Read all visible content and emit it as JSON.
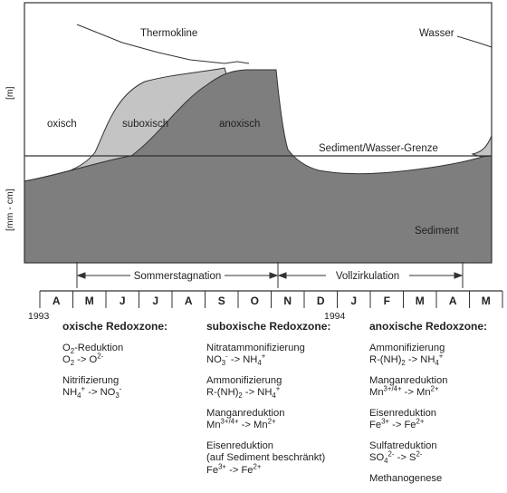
{
  "diagram": {
    "labels": {
      "thermokline": "Thermokline",
      "wasser": "Wasser",
      "oxisch": "oxisch",
      "suboxisch": "suboxisch",
      "anoxisch": "anoxisch",
      "grenze": "Sediment/Wasser-Grenze",
      "sediment": "Sediment",
      "y_upper": "[m]",
      "y_lower": "[mm - cm]"
    },
    "periods": {
      "sommer": "Sommerstagnation",
      "voll": "Vollzirkulation"
    },
    "months": [
      "A",
      "M",
      "J",
      "J",
      "A",
      "S",
      "O",
      "N",
      "D",
      "J",
      "F",
      "M",
      "A",
      "M"
    ],
    "years": {
      "y1": "1993",
      "y2": "1994"
    },
    "colors": {
      "sediment": "#8c8c8c",
      "suboxic": "#c4c4c4",
      "anoxic": "#7e7e7e",
      "line": "#333333"
    }
  },
  "zones": {
    "oxic": {
      "title": "oxische Redoxzone:",
      "items": [
        {
          "name": "O2-Reduktion",
          "formula": "O2 -> O2-"
        },
        {
          "name": "Nitrifizierung",
          "formula": "NH4+ -> NO3-"
        }
      ]
    },
    "suboxic": {
      "title": "suboxische Redoxzone:",
      "items": [
        {
          "name": "Nitratammonifizierung",
          "formula": "NO3- -> NH4+"
        },
        {
          "name": "Ammonifizierung",
          "formula": "R-(NH)2 -> NH4+"
        },
        {
          "name": "Manganreduktion",
          "formula": "Mn3+/4+ -> Mn2+"
        },
        {
          "name": "Eisenreduktion",
          "note": "(auf Sediment beschränkt)",
          "formula": "Fe3+ -> Fe2+"
        }
      ]
    },
    "anoxic": {
      "title": "anoxische Redoxzone:",
      "items": [
        {
          "name": "Ammonifizierung",
          "formula": "R-(NH)2 -> NH4+"
        },
        {
          "name": "Manganreduktion",
          "formula": "Mn3+/4+ -> Mn2+"
        },
        {
          "name": "Eisenreduktion",
          "formula": "Fe3+ -> Fe2+"
        },
        {
          "name": "Sulfatreduktion",
          "formula": "SO42- -> S2-"
        },
        {
          "name": "Methanogenese"
        }
      ]
    }
  }
}
